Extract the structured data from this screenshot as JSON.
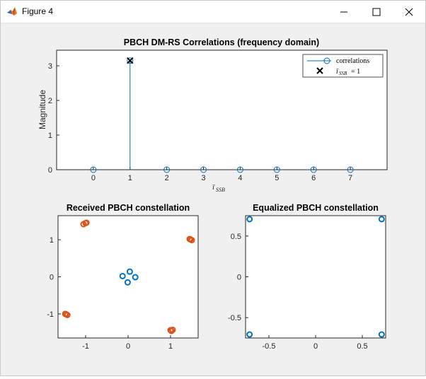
{
  "window": {
    "title": "Figure 4",
    "buttons": {
      "minimize": "minimize-icon",
      "maximize": "maximize-icon",
      "close": "close-icon"
    }
  },
  "colors": {
    "blue": "#0072bd",
    "orange": "#d95319",
    "axis": "#262626",
    "figure_bg": "#f0f0f0"
  },
  "chart_data": [
    {
      "type": "stem",
      "title": "PBCH DM-RS Correlations (frequency domain)",
      "xlabel": "ī_SSB",
      "ylabel": "Magnitude",
      "xlim": [
        -1,
        8
      ],
      "ylim": [
        0,
        3.45
      ],
      "xticks": [
        "0",
        "1",
        "2",
        "3",
        "4",
        "5",
        "6",
        "7"
      ],
      "yticks": [
        "0",
        "1",
        "2",
        "3"
      ],
      "series": [
        {
          "name": "correlations",
          "x": [
            0,
            1,
            2,
            3,
            4,
            5,
            6,
            7
          ],
          "values": [
            0,
            3.15,
            0,
            0,
            0,
            0,
            0,
            0
          ],
          "color": "#0072bd",
          "marker": "o"
        },
        {
          "name": "ī_SSB = 1",
          "x": [
            1
          ],
          "values": [
            3.15
          ],
          "color": "#000000",
          "marker": "x"
        }
      ],
      "legend": {
        "position": "top-right",
        "entries": [
          "correlations",
          "ī",
          "SSB",
          "= 1"
        ]
      }
    },
    {
      "type": "scatter",
      "title": "Received PBCH constellation",
      "xlim": [
        -1.65,
        1.65
      ],
      "ylim": [
        -1.65,
        1.65
      ],
      "xticks": [
        "-1",
        "0",
        "1"
      ],
      "yticks": [
        "1",
        "0",
        "-1"
      ],
      "series": [
        {
          "name": "",
          "color": "#0072bd",
          "points": [
            [
              -0.13,
              0.02
            ],
            [
              0.04,
              0.14
            ],
            [
              0.17,
              -0.01
            ],
            [
              -0.01,
              -0.15
            ]
          ]
        },
        {
          "name": "",
          "color": "#d95319",
          "points": [
            [
              -1.05,
              1.42
            ],
            [
              -1.0,
              1.45
            ],
            [
              -0.98,
              1.46
            ],
            [
              1.45,
              1.02
            ],
            [
              1.47,
              1.01
            ],
            [
              1.5,
              0.99
            ],
            [
              -1.48,
              -1.0
            ],
            [
              -1.46,
              -1.01
            ],
            [
              -1.43,
              -1.03
            ],
            [
              1.0,
              -1.44
            ],
            [
              1.02,
              -1.46
            ],
            [
              1.05,
              -1.43
            ]
          ]
        }
      ]
    },
    {
      "type": "scatter",
      "title": "Equalized PBCH constellation",
      "xlim": [
        -0.75,
        0.75
      ],
      "ylim": [
        -0.75,
        0.75
      ],
      "xticks": [
        "-0.5",
        "0",
        "0.5"
      ],
      "yticks": [
        "0.5",
        "0",
        "-0.5"
      ],
      "series": [
        {
          "name": "",
          "color": "#0072bd",
          "points": [
            [
              -0.707,
              0.707
            ],
            [
              0.707,
              0.707
            ],
            [
              -0.707,
              -0.707
            ],
            [
              0.707,
              -0.707
            ]
          ]
        }
      ]
    }
  ]
}
